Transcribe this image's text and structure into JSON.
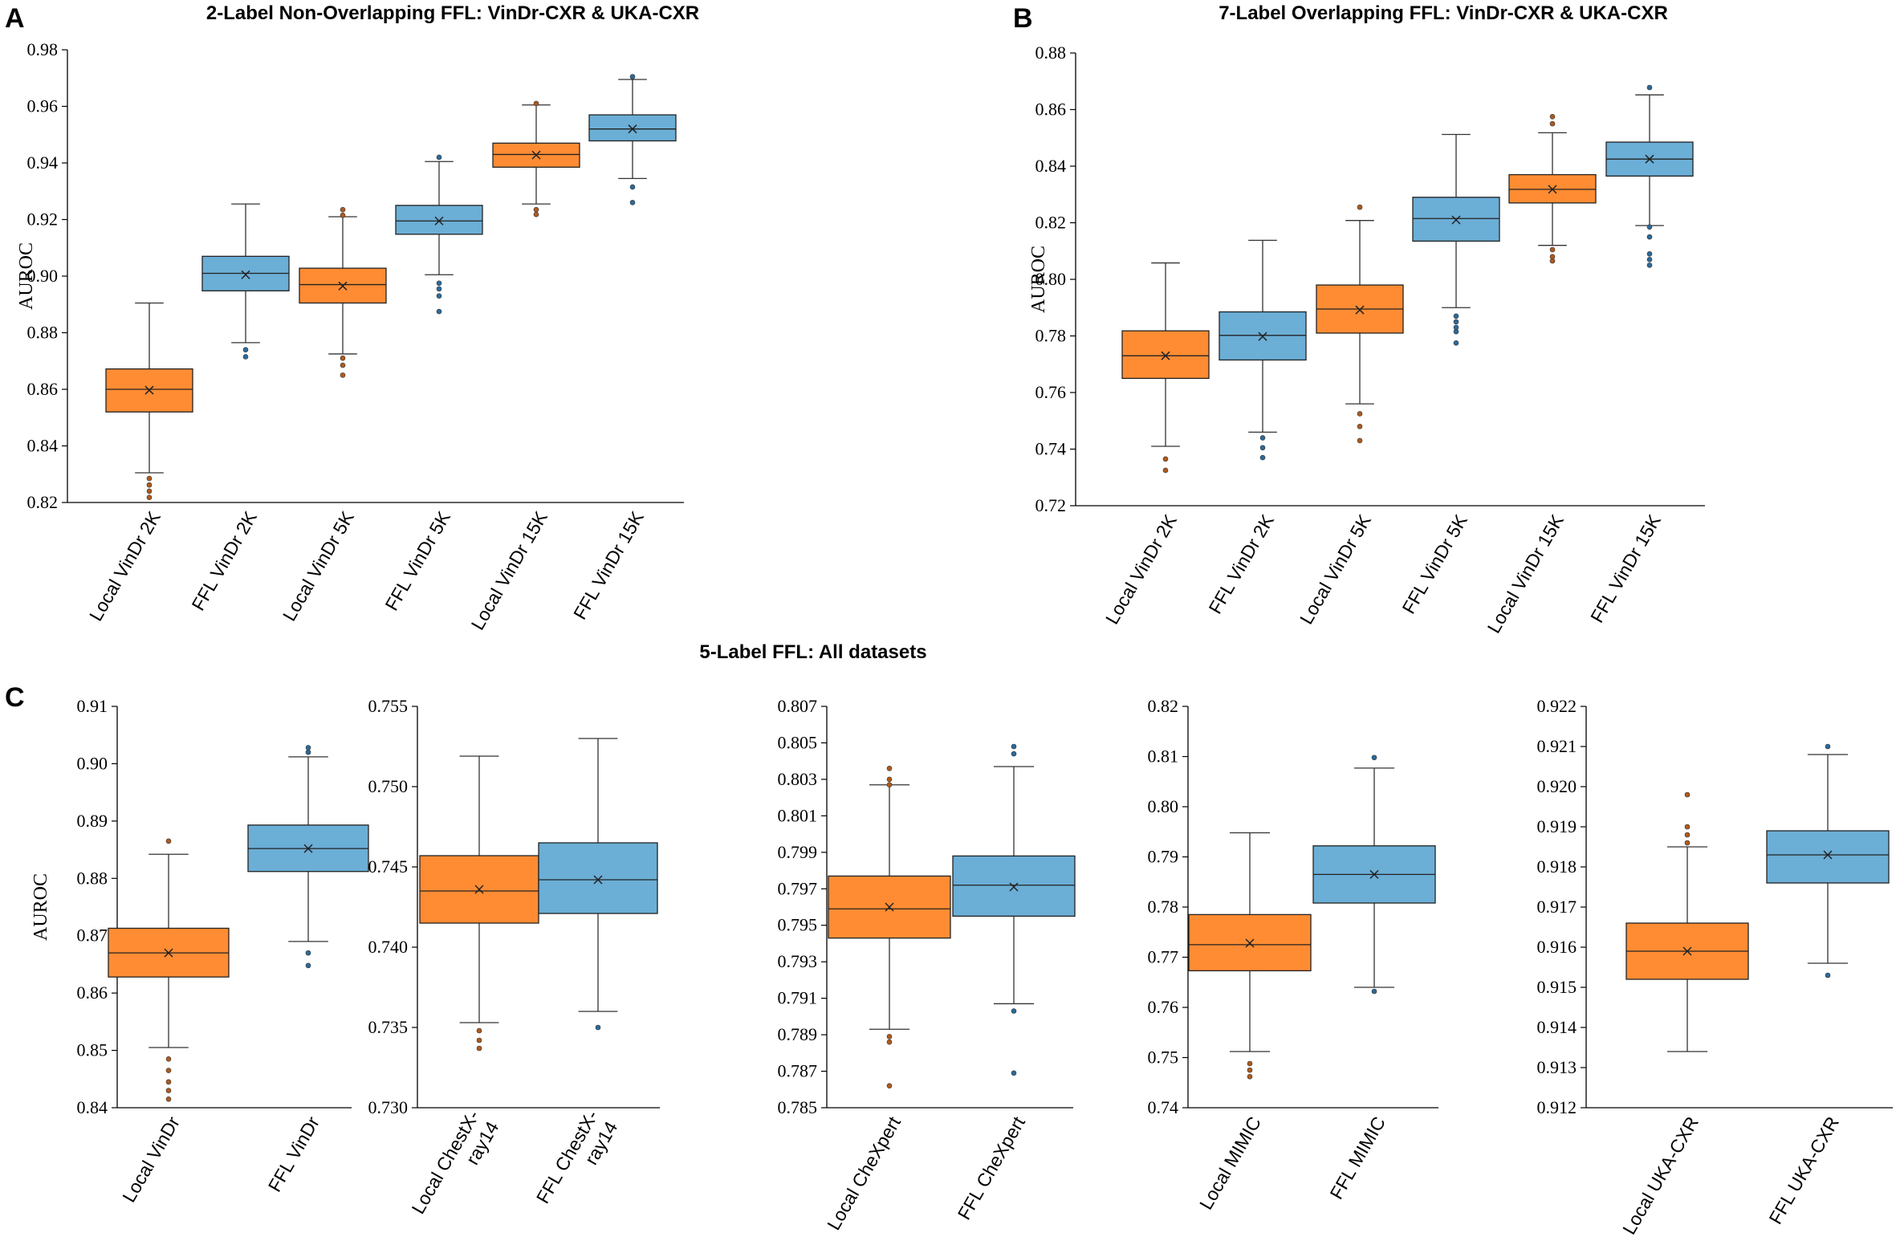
{
  "colors": {
    "local": "#FF8C33",
    "ffl": "#6BAED6",
    "local_outlier": "#B05A1C",
    "ffl_outlier": "#2B6A9A"
  },
  "panels": {
    "A": {
      "letter": "A",
      "title": "2-Label Non-Overlapping FFL: VinDr-CXR & UKA-CXR"
    },
    "B": {
      "letter": "B",
      "title": "7-Label Overlapping FFL: VinDr-CXR & UKA-CXR"
    },
    "C": {
      "letter": "C",
      "title": "5-Label FFL: All datasets"
    }
  },
  "chart_data": [
    {
      "id": "A",
      "type": "box",
      "ylabel": "AUROC",
      "ylim": [
        0.82,
        0.98
      ],
      "yticks": [
        "0.82",
        "0.84",
        "0.86",
        "0.88",
        "0.90",
        "0.92",
        "0.94",
        "0.96",
        "0.98"
      ],
      "boxes": [
        {
          "label": "Local VinDr 2K",
          "kind": "local",
          "whislo": 0.8305,
          "q1": 0.852,
          "med": 0.86,
          "q3": 0.8672,
          "whishi": 0.8905,
          "mean": 0.8597,
          "outliers": [
            0.8285,
            0.8262,
            0.824,
            0.8218
          ]
        },
        {
          "label": "FFL VinDr 2K",
          "kind": "ffl",
          "whislo": 0.8765,
          "q1": 0.8948,
          "med": 0.901,
          "q3": 0.907,
          "whishi": 0.9255,
          "mean": 0.9005,
          "outliers": [
            0.874,
            0.8715
          ]
        },
        {
          "label": "Local VinDr 5K",
          "kind": "local",
          "whislo": 0.8725,
          "q1": 0.8905,
          "med": 0.897,
          "q3": 0.9028,
          "whishi": 0.921,
          "mean": 0.8965,
          "outliers": [
            0.9235,
            0.9215,
            0.871,
            0.8685,
            0.865
          ]
        },
        {
          "label": "FFL VinDr 5K",
          "kind": "ffl",
          "whislo": 0.9005,
          "q1": 0.9148,
          "med": 0.9195,
          "q3": 0.925,
          "whishi": 0.9405,
          "mean": 0.9195,
          "outliers": [
            0.942,
            0.8975,
            0.8955,
            0.893,
            0.8875
          ]
        },
        {
          "label": "Local VinDr 15K",
          "kind": "local",
          "whislo": 0.9255,
          "q1": 0.9385,
          "med": 0.943,
          "q3": 0.947,
          "whishi": 0.9605,
          "mean": 0.9428,
          "outliers": [
            0.961,
            0.9235,
            0.9218
          ]
        },
        {
          "label": "FFL VinDr 15K",
          "kind": "ffl",
          "whislo": 0.9345,
          "q1": 0.9478,
          "med": 0.952,
          "q3": 0.957,
          "whishi": 0.9695,
          "mean": 0.952,
          "outliers": [
            0.9705,
            0.9315,
            0.926
          ]
        }
      ]
    },
    {
      "id": "B",
      "type": "box",
      "ylabel": "AUROC",
      "ylim": [
        0.72,
        0.88
      ],
      "yticks": [
        "0.72",
        "0.74",
        "0.76",
        "0.78",
        "0.80",
        "0.82",
        "0.84",
        "0.86",
        "0.88"
      ],
      "boxes": [
        {
          "label": "Local VinDr 2K",
          "kind": "local",
          "whislo": 0.741,
          "q1": 0.765,
          "med": 0.773,
          "q3": 0.7818,
          "whishi": 0.8058,
          "mean": 0.773,
          "outliers": [
            0.7365,
            0.7325
          ]
        },
        {
          "label": "FFL VinDr 2K",
          "kind": "ffl",
          "whislo": 0.746,
          "q1": 0.7715,
          "med": 0.7802,
          "q3": 0.7885,
          "whishi": 0.8138,
          "mean": 0.7798,
          "outliers": [
            0.744,
            0.7405,
            0.737
          ]
        },
        {
          "label": "Local VinDr 5K",
          "kind": "local",
          "whislo": 0.756,
          "q1": 0.781,
          "med": 0.7895,
          "q3": 0.798,
          "whishi": 0.8208,
          "mean": 0.7892,
          "outliers": [
            0.8255,
            0.7525,
            0.748,
            0.743
          ]
        },
        {
          "label": "FFL VinDr 5K",
          "kind": "ffl",
          "whislo": 0.79,
          "q1": 0.8135,
          "med": 0.8215,
          "q3": 0.829,
          "whishi": 0.8512,
          "mean": 0.821,
          "outliers": [
            0.787,
            0.785,
            0.783,
            0.7815,
            0.7775
          ]
        },
        {
          "label": "Local VinDr 15K",
          "kind": "local",
          "whislo": 0.812,
          "q1": 0.827,
          "med": 0.8318,
          "q3": 0.837,
          "whishi": 0.8518,
          "mean": 0.8318,
          "outliers": [
            0.8575,
            0.855,
            0.8105,
            0.808,
            0.8065
          ]
        },
        {
          "label": "FFL VinDr 15K",
          "kind": "ffl",
          "whislo": 0.819,
          "q1": 0.8365,
          "med": 0.8425,
          "q3": 0.8485,
          "whishi": 0.8652,
          "mean": 0.8425,
          "outliers": [
            0.8678,
            0.8185,
            0.815,
            0.809,
            0.807,
            0.805
          ]
        }
      ]
    },
    {
      "id": "C1",
      "type": "box",
      "ylabel": "AUROC",
      "ylim": [
        0.84,
        0.91
      ],
      "yticks": [
        "0.84",
        "0.85",
        "0.86",
        "0.87",
        "0.88",
        "0.89",
        "0.90",
        "0.91"
      ],
      "boxes": [
        {
          "label": "Local VinDr",
          "kind": "local",
          "whislo": 0.8505,
          "q1": 0.8628,
          "med": 0.867,
          "q3": 0.8713,
          "whishi": 0.8842,
          "mean": 0.867,
          "outliers": [
            0.8865,
            0.8485,
            0.8465,
            0.8445,
            0.843,
            0.8415
          ]
        },
        {
          "label": "FFL VinDr",
          "kind": "ffl",
          "whislo": 0.869,
          "q1": 0.8812,
          "med": 0.8852,
          "q3": 0.8893,
          "whishi": 0.9012,
          "mean": 0.8852,
          "outliers": [
            0.9028,
            0.902,
            0.867,
            0.8648
          ]
        }
      ]
    },
    {
      "id": "C2",
      "type": "box",
      "ylabel": "",
      "ylim": [
        0.73,
        0.755
      ],
      "yticks": [
        "0.730",
        "0.735",
        "0.740",
        "0.745",
        "0.750",
        "0.755"
      ],
      "boxes": [
        {
          "label": "Local ChestX-ray14",
          "label_lines": [
            "Local ChestX-",
            "ray14"
          ],
          "kind": "local",
          "whislo": 0.7353,
          "q1": 0.7415,
          "med": 0.7435,
          "q3": 0.7457,
          "whishi": 0.7519,
          "mean": 0.7436,
          "outliers": [
            0.7348,
            0.7342,
            0.7337
          ]
        },
        {
          "label": "FFL ChestX-ray14",
          "label_lines": [
            "FFL ChestX-",
            "ray14"
          ],
          "kind": "ffl",
          "whislo": 0.736,
          "q1": 0.7421,
          "med": 0.7442,
          "q3": 0.7465,
          "whishi": 0.753,
          "mean": 0.7442,
          "outliers": [
            0.735
          ]
        }
      ]
    },
    {
      "id": "C3",
      "type": "box",
      "ylabel": "",
      "ylim": [
        0.785,
        0.807
      ],
      "yticks": [
        "0.785",
        "0.787",
        "0.789",
        "0.791",
        "0.793",
        "0.795",
        "0.797",
        "0.799",
        "0.801",
        "0.803",
        "0.805",
        "0.807"
      ],
      "boxes": [
        {
          "label": "Local CheXpert",
          "kind": "local",
          "whislo": 0.7893,
          "q1": 0.7943,
          "med": 0.7959,
          "q3": 0.7977,
          "whishi": 0.8027,
          "mean": 0.796,
          "outliers": [
            0.8036,
            0.803,
            0.8027,
            0.7889,
            0.7886,
            0.7862
          ]
        },
        {
          "label": "FFL CheXpert",
          "kind": "ffl",
          "whislo": 0.7907,
          "q1": 0.7955,
          "med": 0.7972,
          "q3": 0.7988,
          "whishi": 0.8037,
          "mean": 0.7971,
          "outliers": [
            0.8048,
            0.8044,
            0.7903,
            0.7869
          ]
        }
      ]
    },
    {
      "id": "C4",
      "type": "box",
      "ylabel": "",
      "ylim": [
        0.74,
        0.82
      ],
      "yticks": [
        "0.74",
        "0.75",
        "0.76",
        "0.77",
        "0.78",
        "0.79",
        "0.80",
        "0.81",
        "0.82"
      ],
      "boxes": [
        {
          "label": "Local MIMIC",
          "kind": "local",
          "whislo": 0.7512,
          "q1": 0.7673,
          "med": 0.7725,
          "q3": 0.7785,
          "whishi": 0.7948,
          "mean": 0.7728,
          "outliers": [
            0.7488,
            0.7475,
            0.7462
          ]
        },
        {
          "label": "FFL MIMIC",
          "kind": "ffl",
          "whislo": 0.764,
          "q1": 0.7808,
          "med": 0.7865,
          "q3": 0.7922,
          "whishi": 0.8077,
          "mean": 0.7865,
          "outliers": [
            0.8098,
            0.7632
          ]
        }
      ]
    },
    {
      "id": "C5",
      "type": "box",
      "ylabel": "",
      "ylim": [
        0.912,
        0.922
      ],
      "yticks": [
        "0.912",
        "0.913",
        "0.914",
        "0.915",
        "0.916",
        "0.917",
        "0.918",
        "0.919",
        "0.920",
        "0.921",
        "0.922"
      ],
      "boxes": [
        {
          "label": "Local UKA-CXR",
          "kind": "local",
          "whislo": 0.9134,
          "q1": 0.9152,
          "med": 0.9159,
          "q3": 0.9166,
          "whishi": 0.9185,
          "mean": 0.9159,
          "outliers": [
            0.9198,
            0.919,
            0.9188,
            0.9186
          ]
        },
        {
          "label": "FFL UKA-CXR",
          "kind": "ffl",
          "whislo": 0.9156,
          "q1": 0.9176,
          "med": 0.9183,
          "q3": 0.9189,
          "whishi": 0.9208,
          "mean": 0.9183,
          "outliers": [
            0.921,
            0.9153
          ]
        }
      ]
    }
  ]
}
